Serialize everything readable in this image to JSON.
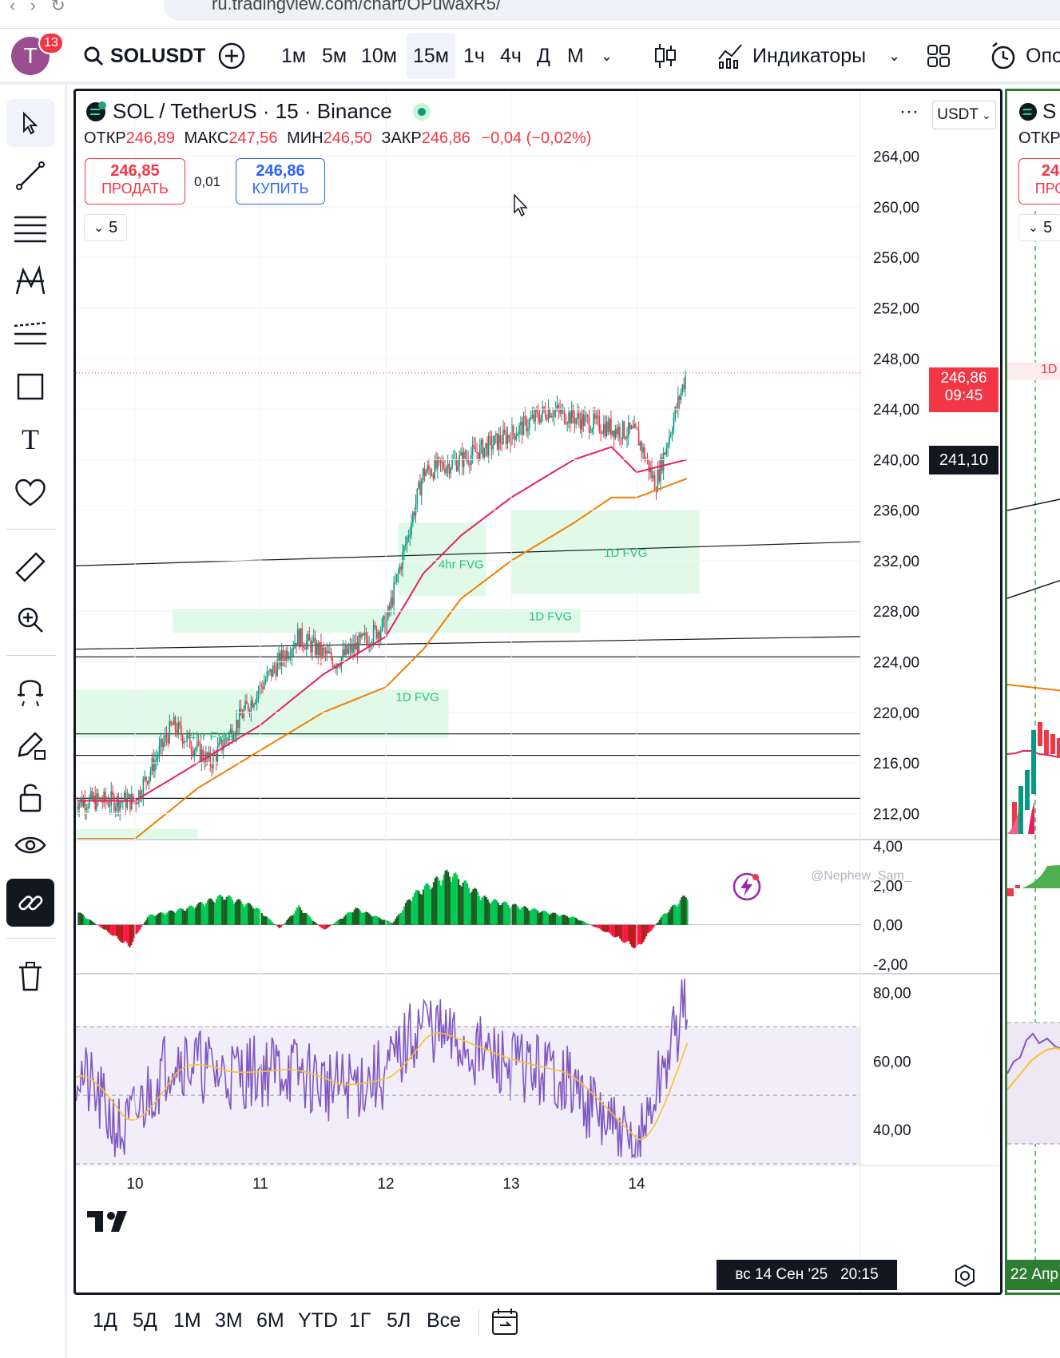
{
  "browser": {
    "url": "ru.tradingview.com/chart/OPuwaxR5/"
  },
  "header": {
    "avatar_letter": "T",
    "notifications": "13",
    "symbol": "SOLUSDT",
    "intervals": [
      "1м",
      "5м",
      "10м",
      "15м",
      "1ч",
      "4ч",
      "Д",
      "М"
    ],
    "active_interval": "15м",
    "indicators_label": "Индикаторы",
    "alerts_label": "Опо"
  },
  "chart": {
    "title": "SOL / TetherUS · 15 · Binance",
    "ohlc": {
      "o_label": "ОТКР",
      "o": "246,89",
      "h_label": "МАКС",
      "h": "247,56",
      "l_label": "МИН",
      "l": "246,50",
      "c_label": "ЗАКР",
      "c": "246,86",
      "change": "−0,04 (−0,02%)"
    },
    "sell": {
      "price": "246,85",
      "label": "ПРОДАТЬ"
    },
    "spread": "0,01",
    "buy": {
      "price": "246,86",
      "label": "КУПИТЬ"
    },
    "indicators_count": "5",
    "currency": "USDT",
    "price_badge": {
      "price": "246,86",
      "timer": "09:45"
    },
    "cursor_price": "241,10",
    "cursor_time": "вс 14 Сен '25   20:15",
    "watermark": "@Nephew_Sam_",
    "zones": [
      "4hr FVG",
      "1D FVG",
      "1D FVG",
      "1D FVG",
      "4hr FVG"
    ],
    "right_panel": {
      "title": "S",
      "open_label": "ОТКР",
      "sell_price": "24",
      "sell_label": "ПРО",
      "count": "5",
      "zone": "1D",
      "date": "22 Апр"
    }
  },
  "chart_data": [
    {
      "type": "line",
      "title": "SOL / TetherUS · 15 · Binance",
      "ylabel": "",
      "xlabel": "",
      "categories": [
        "10",
        "11",
        "12",
        "13",
        "14"
      ],
      "yticks": [
        "264,00",
        "260,00",
        "256,00",
        "252,00",
        "248,00",
        "244,00",
        "240,00",
        "236,00",
        "232,00",
        "228,00",
        "224,00",
        "220,00",
        "216,00",
        "212,00"
      ],
      "ylim": [
        210,
        266
      ],
      "series": [
        {
          "name": "",
          "x": [
            0,
            0.3,
            0.6,
            1,
            1.3,
            1.6,
            2,
            2.3,
            2.6,
            3,
            3.3,
            3.6,
            4,
            4.15,
            4.4
          ],
          "values": [
            213,
            219,
            216,
            222,
            226,
            224,
            227,
            239,
            240,
            242,
            244,
            243,
            242,
            238,
            247
          ]
        },
        {
          "name": "",
          "x": [
            0,
            0.5,
            1,
            1.5,
            2,
            2.3,
            2.6,
            3,
            3.5,
            3.8,
            4,
            4.4
          ],
          "values": [
            213,
            216,
            219,
            223,
            226,
            231,
            234,
            237,
            240,
            241,
            239,
            240
          ]
        },
        {
          "name": "",
          "x": [
            0,
            0.5,
            1,
            1.5,
            2,
            2.3,
            2.6,
            3,
            3.5,
            3.8,
            4,
            4.4
          ],
          "values": [
            210,
            214,
            217,
            220,
            222,
            225,
            229,
            232,
            235,
            237,
            237,
            238.5
          ]
        }
      ]
    },
    {
      "type": "bar",
      "yticks": [
        "4,00",
        "2,00",
        "0,00",
        "-2,00"
      ],
      "ylim": [
        -2.4,
        4.2
      ]
    },
    {
      "type": "line",
      "yticks": [
        "80,00",
        "60,00",
        "40,00"
      ],
      "ylim": [
        30,
        85
      ]
    }
  ],
  "bottom": {
    "ranges": [
      "1Д",
      "5Д",
      "1М",
      "3М",
      "6М",
      "YTD",
      "1Г",
      "5Л",
      "Все"
    ]
  },
  "colors": {
    "up": "#089981",
    "down": "#f23645",
    "ma_pink": "#e91e63",
    "ma_orange": "#f57c00",
    "rsi": "#7e57c2",
    "rsi_ma": "#fbc02d",
    "fvg": "#c8f5d6"
  }
}
